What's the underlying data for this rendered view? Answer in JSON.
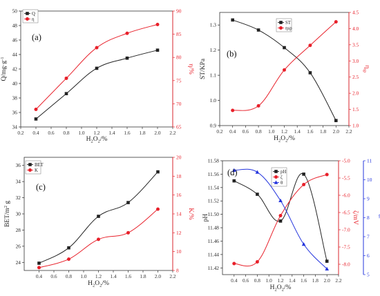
{
  "colors": {
    "black": "#222222",
    "red": "#e8202a",
    "blue": "#2233dd"
  },
  "chart_data": [
    {
      "id": "a",
      "type": "line",
      "panel_label": "(a)",
      "xlabel": "H2O2/%",
      "x": [
        0.4,
        0.8,
        1.2,
        1.6,
        2.0
      ],
      "xlim": [
        0.2,
        2.2
      ],
      "xticks": [
        0.2,
        0.4,
        0.6,
        0.8,
        1.0,
        1.2,
        1.4,
        1.6,
        1.8,
        2.0,
        2.2
      ],
      "axes": [
        {
          "side": "left",
          "label": "Q/mg·g-1",
          "ylim": [
            34,
            50
          ],
          "ticks": [
            34,
            36,
            38,
            40,
            42,
            44,
            46,
            48,
            50
          ],
          "color": "#222222"
        },
        {
          "side": "right",
          "label": "η/%",
          "ylim": [
            65,
            90
          ],
          "ticks": [
            65,
            70,
            75,
            80,
            85,
            90
          ],
          "color": "#e8202a"
        }
      ],
      "series": [
        {
          "name": "Q",
          "axis": "left",
          "color": "#222222",
          "marker": "square",
          "values": [
            35.1,
            38.6,
            42.1,
            43.5,
            44.6
          ]
        },
        {
          "name": "η",
          "axis": "right",
          "color": "#e8202a",
          "marker": "circle",
          "values": [
            68.8,
            75.5,
            82.1,
            85.2,
            87.1
          ]
        }
      ],
      "legend": "top-left"
    },
    {
      "id": "b",
      "type": "line",
      "panel_label": "(b)",
      "xlabel": "H2O2/%",
      "x": [
        0.4,
        0.8,
        1.2,
        1.6,
        2.0
      ],
      "xlim": [
        0.2,
        2.2
      ],
      "xticks": [
        0.2,
        0.4,
        0.6,
        0.8,
        1.0,
        1.2,
        1.4,
        1.6,
        1.8,
        2.0,
        2.2
      ],
      "axes": [
        {
          "side": "left",
          "label": "ST/KPa",
          "ylim": [
            0.9,
            1.35
          ],
          "ticks": [
            0.9,
            1.0,
            1.1,
            1.2,
            1.3
          ],
          "color": "#222222"
        },
        {
          "side": "right",
          "label": "ηsp",
          "ylim": [
            1.0,
            4.5
          ],
          "ticks": [
            1.0,
            1.5,
            2.0,
            2.5,
            3.0,
            3.5,
            4.0,
            4.5
          ],
          "color": "#e8202a"
        }
      ],
      "series": [
        {
          "name": "ST",
          "axis": "left",
          "color": "#222222",
          "marker": "square",
          "values": [
            1.32,
            1.28,
            1.21,
            1.11,
            0.92
          ]
        },
        {
          "name": "ηsp",
          "axis": "right",
          "color": "#e8202a",
          "marker": "circle",
          "values": [
            1.47,
            1.61,
            2.72,
            3.48,
            4.21
          ]
        }
      ],
      "legend": "top-right"
    },
    {
      "id": "c",
      "type": "line",
      "panel_label": "(c)",
      "xlabel": "H2O2/%",
      "x": [
        0.4,
        0.8,
        1.2,
        1.6,
        2.0
      ],
      "xlim": [
        0.2,
        2.2
      ],
      "xticks": [
        0.4,
        0.6,
        0.8,
        1.0,
        1.2,
        1.4,
        1.6,
        1.8,
        2.0,
        2.2
      ],
      "axes": [
        {
          "side": "left",
          "label": "BET/m2 g",
          "ylim": [
            23,
            37
          ],
          "ticks": [
            24,
            26,
            28,
            30,
            32,
            34,
            36
          ],
          "color": "#222222"
        },
        {
          "side": "right",
          "label": "K/%",
          "ylim": [
            8,
            20
          ],
          "ticks": [
            8,
            10,
            12,
            14,
            16,
            18,
            20
          ],
          "color": "#e8202a"
        }
      ],
      "series": [
        {
          "name": "BET",
          "axis": "left",
          "color": "#222222",
          "marker": "square",
          "values": [
            23.9,
            25.8,
            29.7,
            31.4,
            35.2
          ]
        },
        {
          "name": "K",
          "axis": "right",
          "color": "#e8202a",
          "marker": "circle",
          "values": [
            8.3,
            9.2,
            11.3,
            12.0,
            14.5
          ]
        }
      ],
      "legend": "top-left"
    },
    {
      "id": "d",
      "type": "line",
      "panel_label": "(d)",
      "xlabel": "H2O2/%",
      "x": [
        0.4,
        0.8,
        1.2,
        1.6,
        2.0
      ],
      "xlim": [
        0.2,
        2.2
      ],
      "xticks": [
        0.4,
        0.6,
        0.8,
        1.0,
        1.2,
        1.4,
        1.6,
        1.8,
        2.0,
        2.2
      ],
      "axes": [
        {
          "side": "left",
          "label": "pH",
          "ylim": [
            11.41,
            11.58
          ],
          "ticks": [
            11.42,
            11.44,
            11.46,
            11.48,
            11.5,
            11.52,
            11.54,
            11.56,
            11.58
          ],
          "color": "#222222"
        },
        {
          "side": "right",
          "label": "ζ/mV",
          "ylim": [
            -8.3,
            -5.0
          ],
          "ticks": [
            -8.0,
            -7.5,
            -7.0,
            -6.5,
            -6.0,
            -5.5,
            -5.0
          ],
          "color": "#e8202a"
        },
        {
          "side": "right2",
          "label": "θ/°",
          "ylim": [
            5,
            11
          ],
          "ticks": [
            5,
            6,
            7,
            8,
            9,
            10,
            11
          ],
          "color": "#2233dd"
        }
      ],
      "series": [
        {
          "name": "pH",
          "axis": "left",
          "color": "#222222",
          "marker": "square",
          "values": [
            11.55,
            11.53,
            11.49,
            11.56,
            11.43
          ]
        },
        {
          "name": "ζ",
          "axis": "right",
          "color": "#e8202a",
          "marker": "circle",
          "values": [
            -7.98,
            -7.93,
            -6.59,
            -5.69,
            -5.4
          ]
        },
        {
          "name": "θ",
          "axis": "right2",
          "color": "#2233dd",
          "marker": "triangle",
          "values": [
            10.5,
            10.4,
            8.9,
            6.6,
            5.3
          ]
        }
      ],
      "legend": "top-center"
    }
  ]
}
